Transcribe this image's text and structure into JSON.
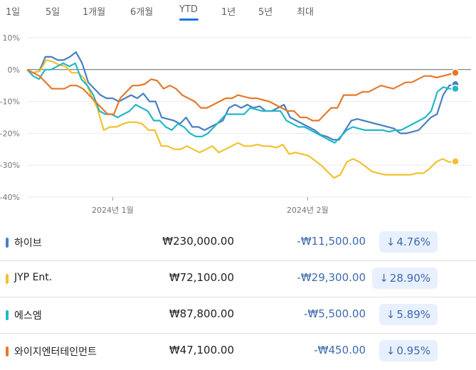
{
  "tabs": [
    {
      "label": "1일",
      "active": false
    },
    {
      "label": "5일",
      "active": false
    },
    {
      "label": "1개월",
      "active": false
    },
    {
      "label": "6개월",
      "active": false
    },
    {
      "label": "YTD",
      "active": true
    },
    {
      "label": "1년",
      "active": false
    },
    {
      "label": "5년",
      "active": false
    },
    {
      "label": "최대",
      "active": false
    }
  ],
  "chart_data": {
    "type": "line",
    "y_unit": "%",
    "ylim": [
      -40,
      10
    ],
    "y_ticks": [
      "10%",
      "0%",
      "-10%",
      "-20%",
      "-30%",
      "-40%"
    ],
    "y_tick_values": [
      10,
      0,
      -10,
      -20,
      -30,
      -40
    ],
    "x_ticks": [
      {
        "label": "2024년 1월",
        "x": 0.2
      },
      {
        "label": "2024년 2월",
        "x": 0.655
      }
    ],
    "grid": true,
    "zero_line": true,
    "series": [
      {
        "name": "하이브",
        "color": "#4a7fc1",
        "values": [
          0,
          -1,
          -0.5,
          4,
          4,
          3,
          3,
          4,
          5.5,
          2,
          -4,
          -6,
          -8,
          -9,
          -9,
          -10,
          -9,
          -8,
          -9,
          -7.5,
          -10,
          -10,
          -15,
          -15.5,
          -16,
          -17,
          -15,
          -18,
          -18,
          -19,
          -18,
          -17,
          -16,
          -12,
          -11,
          -12,
          -11,
          -12,
          -11.5,
          -13,
          -13,
          -12,
          -11,
          -15,
          -16,
          -17,
          -18,
          -19,
          -20.5,
          -21,
          -22,
          -22,
          -19,
          -16,
          -15.5,
          -16,
          -16.5,
          -17,
          -17.5,
          -18,
          -18.5,
          -20,
          -20,
          -19.5,
          -19,
          -17,
          -15,
          -14,
          -8,
          -5,
          -4.6
        ]
      },
      {
        "name": "JYP Ent.",
        "color": "#f2c12e",
        "values": [
          0,
          -1,
          -0.5,
          3,
          2.5,
          1.5,
          1,
          -1,
          -1,
          -3,
          -8,
          -12,
          -19,
          -18,
          -18,
          -17,
          -16.5,
          -16.5,
          -17,
          -19,
          -19,
          -24,
          -24,
          -25,
          -25,
          -24,
          -25,
          -26,
          -25,
          -24,
          -26,
          -25,
          -24,
          -23,
          -24,
          -24,
          -23.5,
          -24,
          -24,
          -24.5,
          -23.5,
          -26.5,
          -26,
          -26.5,
          -27,
          -28.5,
          -30,
          -32,
          -34,
          -33,
          -29,
          -28,
          -29,
          -30.5,
          -32,
          -32.5,
          -33,
          -33,
          -33,
          -33,
          -33,
          -32.5,
          -32.5,
          -31,
          -29,
          -28,
          -29,
          -28.8
        ]
      },
      {
        "name": "에스엠",
        "color": "#22b8c6",
        "values": [
          0,
          -2,
          -3,
          0,
          0,
          1,
          2,
          1,
          2,
          -3,
          -5,
          -8,
          -13,
          -14,
          -14,
          -15,
          -14,
          -13,
          -11,
          -12,
          -13,
          -16,
          -16,
          -18,
          -19,
          -17,
          -18,
          -20,
          -21,
          -21,
          -20,
          -18,
          -16,
          -14,
          -14,
          -14,
          -14,
          -12,
          -12.5,
          -13,
          -13,
          -13,
          -13,
          -16,
          -17,
          -18,
          -18,
          -19,
          -20,
          -21,
          -22,
          -23,
          -21,
          -19,
          -18,
          -18.5,
          -19,
          -19,
          -19,
          -19,
          -19.5,
          -19,
          -19,
          -18,
          -17,
          -16,
          -15,
          -13,
          -7,
          -5.5,
          -6,
          -6
        ]
      },
      {
        "name": "와이지엔터테인먼트",
        "color": "#e5792a",
        "values": [
          0,
          -1,
          -2,
          -4,
          -6,
          -6,
          -6,
          -5,
          -5,
          -6,
          -8,
          -10,
          -12,
          -14,
          -14,
          -9,
          -7,
          -5,
          -5,
          -4.5,
          -3,
          -3.5,
          -6,
          -5,
          -6,
          -8,
          -9,
          -10,
          -12,
          -12,
          -11,
          -10,
          -9,
          -9,
          -8,
          -8.5,
          -9,
          -9,
          -9.5,
          -10,
          -11,
          -12,
          -13,
          -13,
          -15,
          -15,
          -16,
          -16,
          -14,
          -12,
          -12,
          -8,
          -8,
          -8,
          -7,
          -7,
          -6,
          -5,
          -5.5,
          -6,
          -5,
          -4,
          -4,
          -3,
          -2,
          -2,
          -2.5,
          -2,
          -1.5,
          -1
        ]
      }
    ]
  },
  "stocks": [
    {
      "name": "하이브",
      "price": "₩230,000.00",
      "change": "-₩11,500.00",
      "pct": "4.76%",
      "arrow": "↓",
      "color": "#4a7fc1"
    },
    {
      "name": "JYP Ent.",
      "price": "₩72,100.00",
      "change": "-₩29,300.00",
      "pct": "28.90%",
      "arrow": "↓",
      "color": "#f2c12e"
    },
    {
      "name": "에스엠",
      "price": "₩87,800.00",
      "change": "-₩5,500.00",
      "pct": "5.89%",
      "arrow": "↓",
      "color": "#22b8c6"
    },
    {
      "name": "와이지엔터테인먼트",
      "price": "₩47,100.00",
      "change": "-₩450.00",
      "pct": "0.95%",
      "arrow": "↓",
      "color": "#e5792a"
    }
  ]
}
